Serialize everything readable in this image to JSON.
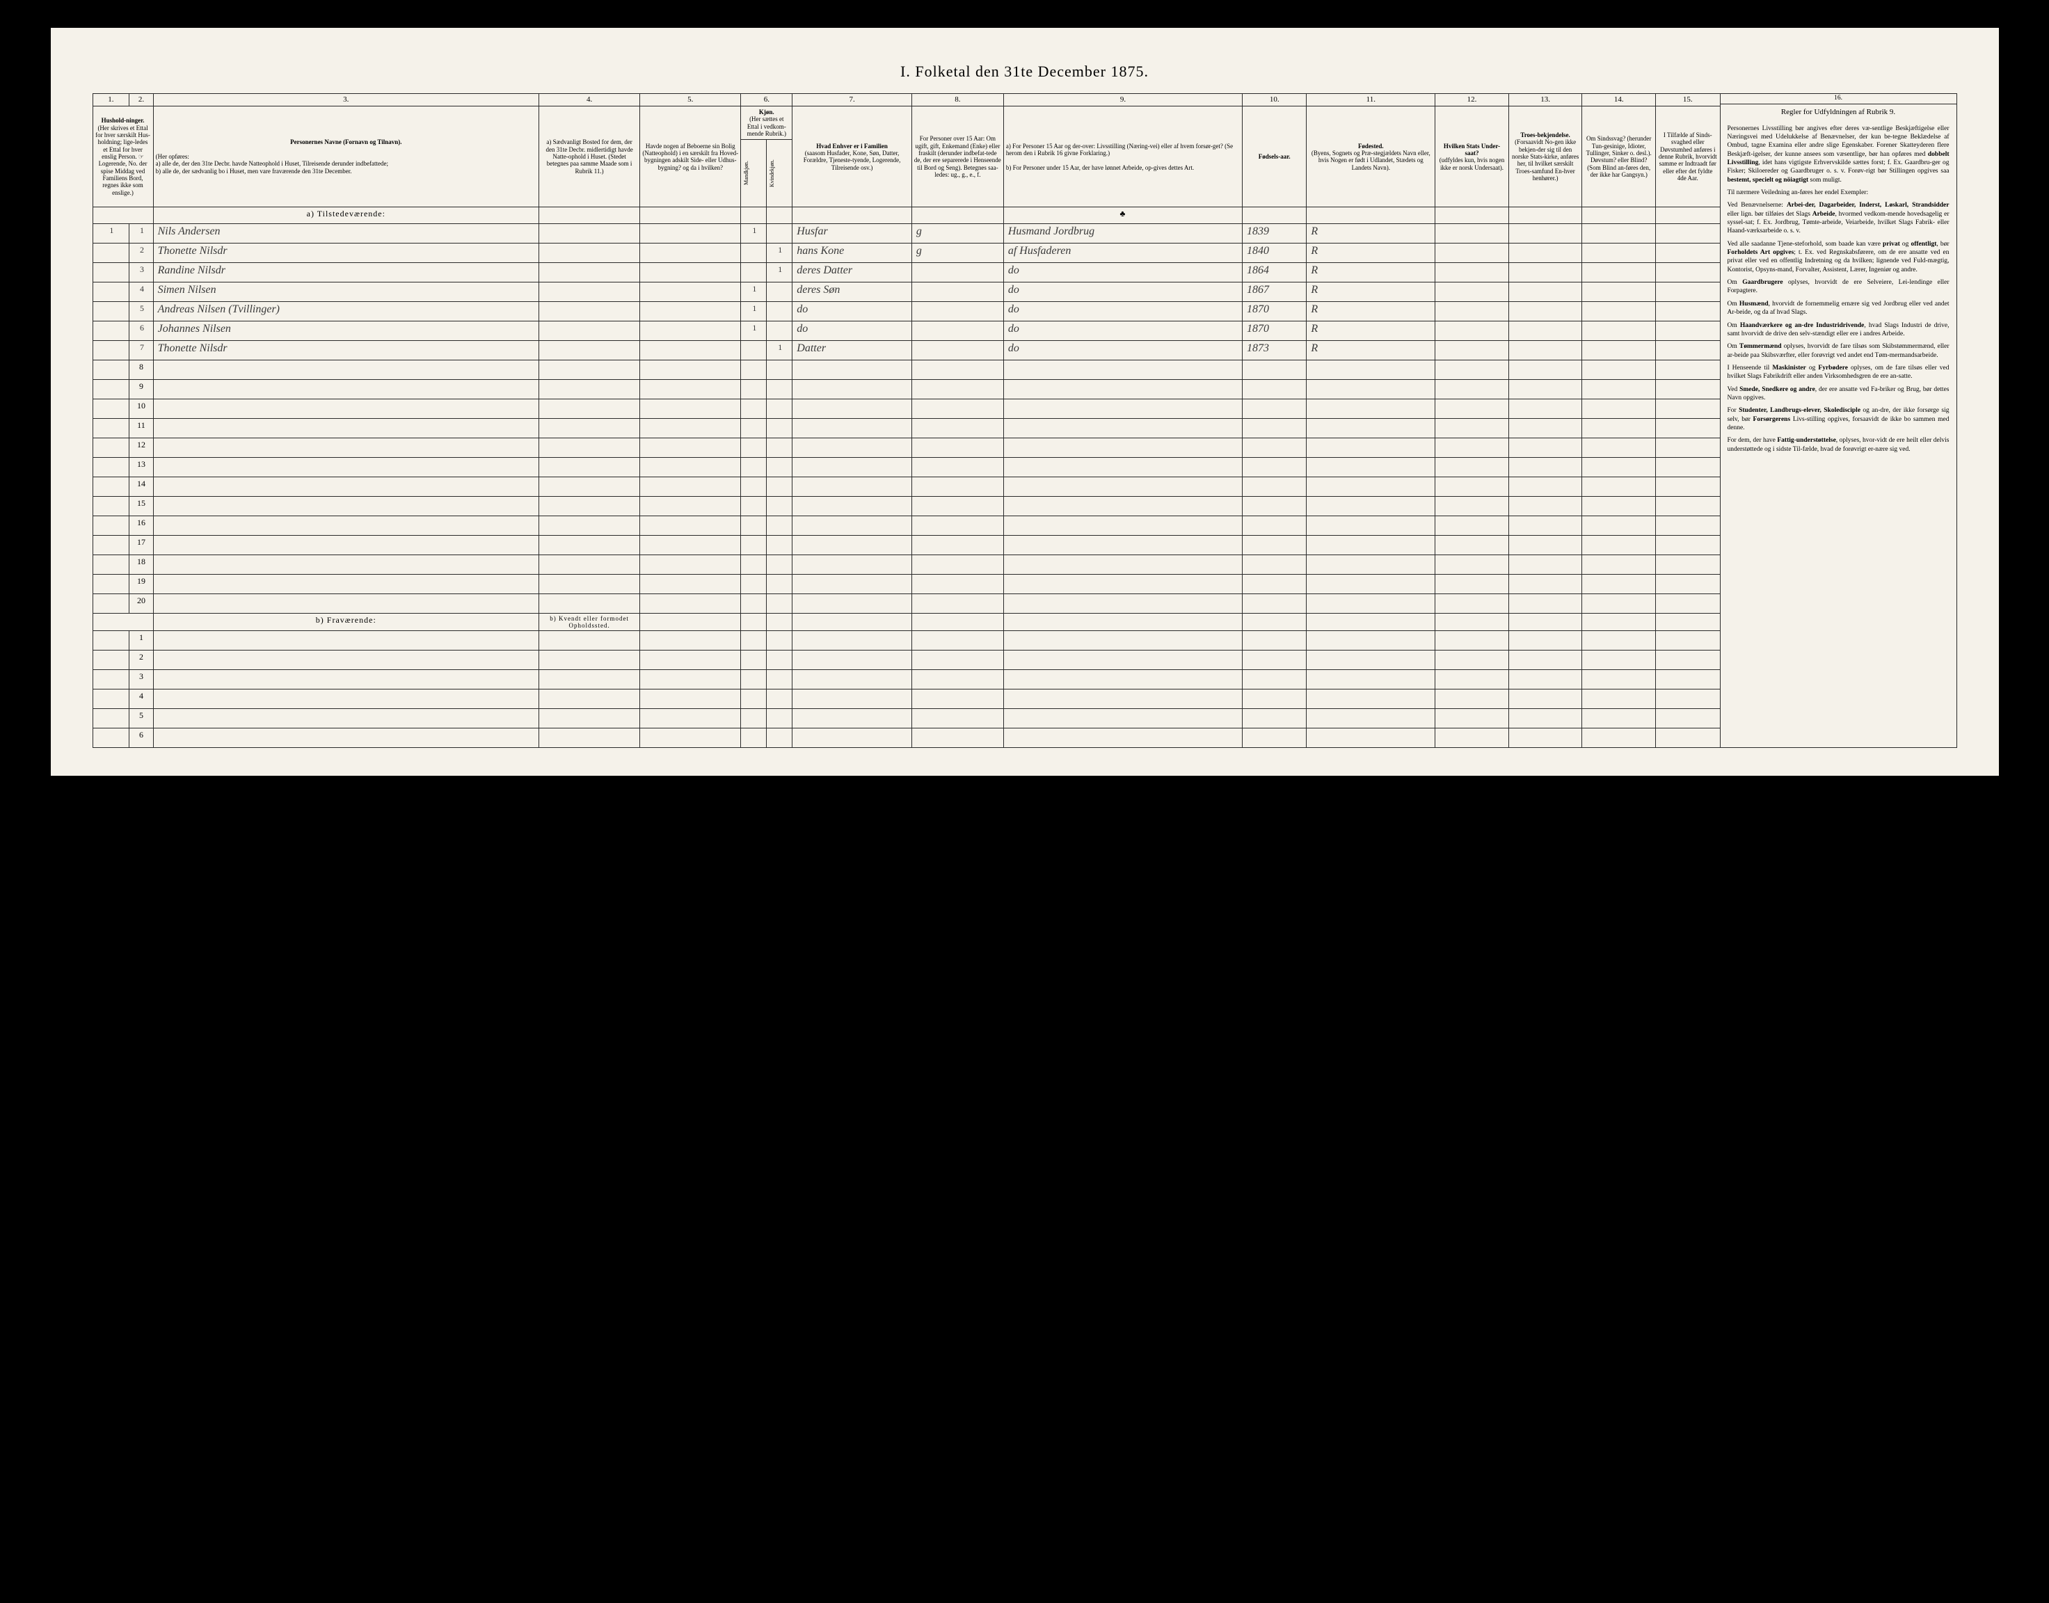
{
  "title": "I. Folketal den 31te December 1875.",
  "columns": {
    "nums": [
      "1.",
      "2.",
      "3.",
      "4.",
      "5.",
      "6.",
      "7.",
      "8.",
      "9.",
      "10.",
      "11.",
      "12.",
      "13.",
      "14.",
      "15.",
      "16."
    ],
    "h1": "Hushold-ninger.",
    "h1_sub": "(Her skrives et Ettal for hver særskilt Hus-holdning; lige-ledes et Ettal for hver enslig Person. ☞ Logerende, No. der spise Middag ved Familiens Bord, regnes ikke som enslige.)",
    "h3": "Personernes Navne (Fornavn og Tilnavn).",
    "h3_sub": "(Her opføres:\na) alle de, der den 31te Decbr. havde Natteophold i Huset, Tilreisende derunder indbefattede;\nb) alle de, der sædvanlig bo i Huset, men vare fraværende den 31te December.",
    "h4": "a) Sædvanligt Bosted for dem, der den 31te Decbr. midlertidigt havde Natte-ophold i Huset. (Stedet betegnes paa samme Maade som i Rubrik 11.)",
    "h5": "Havde nogen af Beboerne sin Bolig (Natteophold) i en særskilt fra Hoved-bygningen adskilt Side- eller Udhus-bygning? og da i hvilken?",
    "h6": "Kjøn.",
    "h6_sub": "(Her sættes et Ettal i vedkom-mende Rubrik.)",
    "h6a": "Mandkjøn.",
    "h6b": "Kvindekjøn.",
    "h7": "Hvad Enhver er i Familien",
    "h7_sub": "(saasom Husfader, Kone, Søn, Datter, Forældre, Tjeneste-tyende, Logerende, Tilreisende osv.)",
    "h8": "For Personer over 15 Aar: Om ugift, gift, Enkemand (Enke) eller fraskilt (derunder indbefat-tede de, der ere separerede i Henseende til Bord og Seng). Betegnes saa-ledes: ug., g., e., f.",
    "h9a": "a) For Personer 15 Aar og der-over: Livsstilling (Næring-vei) eller af hvem forsør-get? (Se herom den i Rubrik 16 givne Forklaring.)",
    "h9b": "b) For Personer under 15 Aar, der have lønnet Arbeide, op-gives dettes Art.",
    "h10": "Fødsels-aar.",
    "h11": "Fødested.",
    "h11_sub": "(Byens, Sognets og Præ-stegjældets Navn eller, hvis Nogen er født i Udlandet, Stædets og Landets Navn).",
    "h12": "Hvilken Stats Under-saat?",
    "h12_sub": "(udfyldes kun, hvis nogen ikke er norsk Undersaat).",
    "h13": "Troes-bekjendelse.",
    "h13_sub": "(Forsaavidt No-gen ikke bekjen-der sig til den norske Stats-kirke, anføres her, til hvilket særskilt Troes-samfund En-hver henhører.)",
    "h14": "Om Sindssvag? (herunder Tun-gesinige, Idioter, Tullinger, Sinker o. desl.).",
    "h14_sub": "Døvstum? eller Blind? (Som Blind an-føres den, der ikke har Gangsyn.)",
    "h15": "I Tilfælde af Sinds-svaghed eller Døvstumhed anføres i denne Rubrik, hvorvidt samme er Indtraadt før eller efter det fyldte 4de Aar.",
    "h16": "Regler for Udfyldningen af Rubrik 9."
  },
  "sections": {
    "present": "a) Tilstedeværende:",
    "absent": "b) Fraværende:",
    "absent_col4": "b) Kvendt eller formodet Opholdssted."
  },
  "rows": [
    {
      "n": "1",
      "name": "Nils Andersen",
      "m": "1",
      "k": "",
      "rel": "Husfar",
      "stat": "g",
      "occ": "Husmand Jordbrug",
      "year": "1839",
      "place": "R"
    },
    {
      "n": "2",
      "name": "Thonette Nilsdr",
      "m": "",
      "k": "1",
      "rel": "hans Kone",
      "stat": "g",
      "occ": "af Husfaderen",
      "year": "1840",
      "place": "R"
    },
    {
      "n": "3",
      "name": "Randine Nilsdr",
      "m": "",
      "k": "1",
      "rel": "deres Datter",
      "stat": "",
      "occ": "do",
      "year": "1864",
      "place": "R"
    },
    {
      "n": "4",
      "name": "Simen Nilsen",
      "m": "1",
      "k": "",
      "rel": "deres Søn",
      "stat": "",
      "occ": "do",
      "year": "1867",
      "place": "R"
    },
    {
      "n": "5",
      "name": "Andreas Nilsen (Tvillinger)",
      "m": "1",
      "k": "",
      "rel": "do",
      "stat": "",
      "occ": "do",
      "year": "1870",
      "place": "R"
    },
    {
      "n": "6",
      "name": "Johannes Nilsen",
      "m": "1",
      "k": "",
      "rel": "do",
      "stat": "",
      "occ": "do",
      "year": "1870",
      "place": "R"
    },
    {
      "n": "7",
      "name": "Thonette Nilsdr",
      "m": "",
      "k": "1",
      "rel": "Datter",
      "stat": "",
      "occ": "do",
      "year": "1873",
      "place": "R"
    }
  ],
  "empty_present": [
    "8",
    "9",
    "10",
    "11",
    "12",
    "13",
    "14",
    "15",
    "16",
    "17",
    "18",
    "19",
    "20"
  ],
  "empty_absent": [
    "1",
    "2",
    "3",
    "4",
    "5",
    "6"
  ],
  "rules": [
    "Personernes Livsstilling bør angives efter deres væ-sentlige Beskjæftigelse eller Næringsvei med Udelukkelse af Benævnelser, der kun be-tegne Beklædelse af Ombud, tagne Examina eller andre slige Egenskaber. Forener Skatteyderen flere Beskjæft-igelser, der kunne ansees som væsentlige, bør han opføres med <b>dobbelt Livsstilling</b>, idet hans vigtigste Erhvervskilde sættes forst; f. Ex. Gaardbru-ger og Fisker; Skiloereder og Gaardbruger o. s. v. Forøv-rigt bør Stillingen opgives saa <b>bestemt, specielt og nöiagtigt</b> som muligt.",
    "Til nærmere Veiledning an-føres her endel Exempler:",
    "Ved Benævnelserne: <b>Arbei-der, Dagarbeider, Inderst, Løskarl, Strandsidder</b> eller lign. bør tilføies det Slags <b>Arbeide</b>, hvormed vedkom-mende hovedsagelig er syssel-sat; f. Ex. Jordbrug, Tømte-arbeide, Veiarbeide, hvilket Slags Fabrik- eller Haand-værksarbeide o. s. v.",
    "Ved alle saadanne Tjene-steforhold, som baade kan være <b>privat</b> og <b>offentligt</b>, bør <b>Forholdets Art opgives</b>; t. Ex. ved Regnskabsførere, om de ere ansatte ved en privat eller ved en offentlig Indretning og da hvilken; lignende ved Fuld-mægtig, Kontorist, Opsyns-mand, Forvalter, Assistent, Lærer, Ingeniør og andre.",
    "Om <b>Gaardbrugere</b> oplyses, hvorvidt de ere Selveiere, Lei-lendinge eller Forpagtere.",
    "Om <b>Husmænd</b>, hvorvidt de fornemmelig ernære sig ved Jordbrug eller ved andet Ar-beide, og da af hvad Slags.",
    "Om <b>Haandværkere og an-dre Industridrivende</b>, hvad Slags Industri de drive, samt hvorvidt de drive den selv-stændigt eller ere i andres Arbeide.",
    "Om <b>Tømmermænd</b> oplyses, hvorvidt de fare tilsøs som Skibstømmermænd, eller ar-beide paa Skibsværfter, eller forøvrigt ved andet end Tøm-mermandsarbeide.",
    "I Henseende til <b>Maskinister</b> og <b>Fyrbødere</b> oplyses, om de fare tilsøs eller ved hvilket Slags Fabrikdrift eller anden Virksomhedsgren de ere an-satte.",
    "Ved <b>Smede, Snedkere og andre</b>, der ere ansatte ved Fa-briker og Brug, bør dettes Navn opgives.",
    "For <b>Studenter, Landbrugs-elever, Skoledisciple</b> og an-dre, der ikke forsørge sig selv, bør <b>Forsørgerens</b> Livs-stilling opgives, forsaavidt de ikke bo sammen med denne.",
    "For dem, der have <b>Fattig-understøttelse</b>, oplyses, hvor-vidt de ere heilt eller delvis understøttede og i sidste Til-fælde, hvad de forøvrigt er-nære sig ved."
  ]
}
